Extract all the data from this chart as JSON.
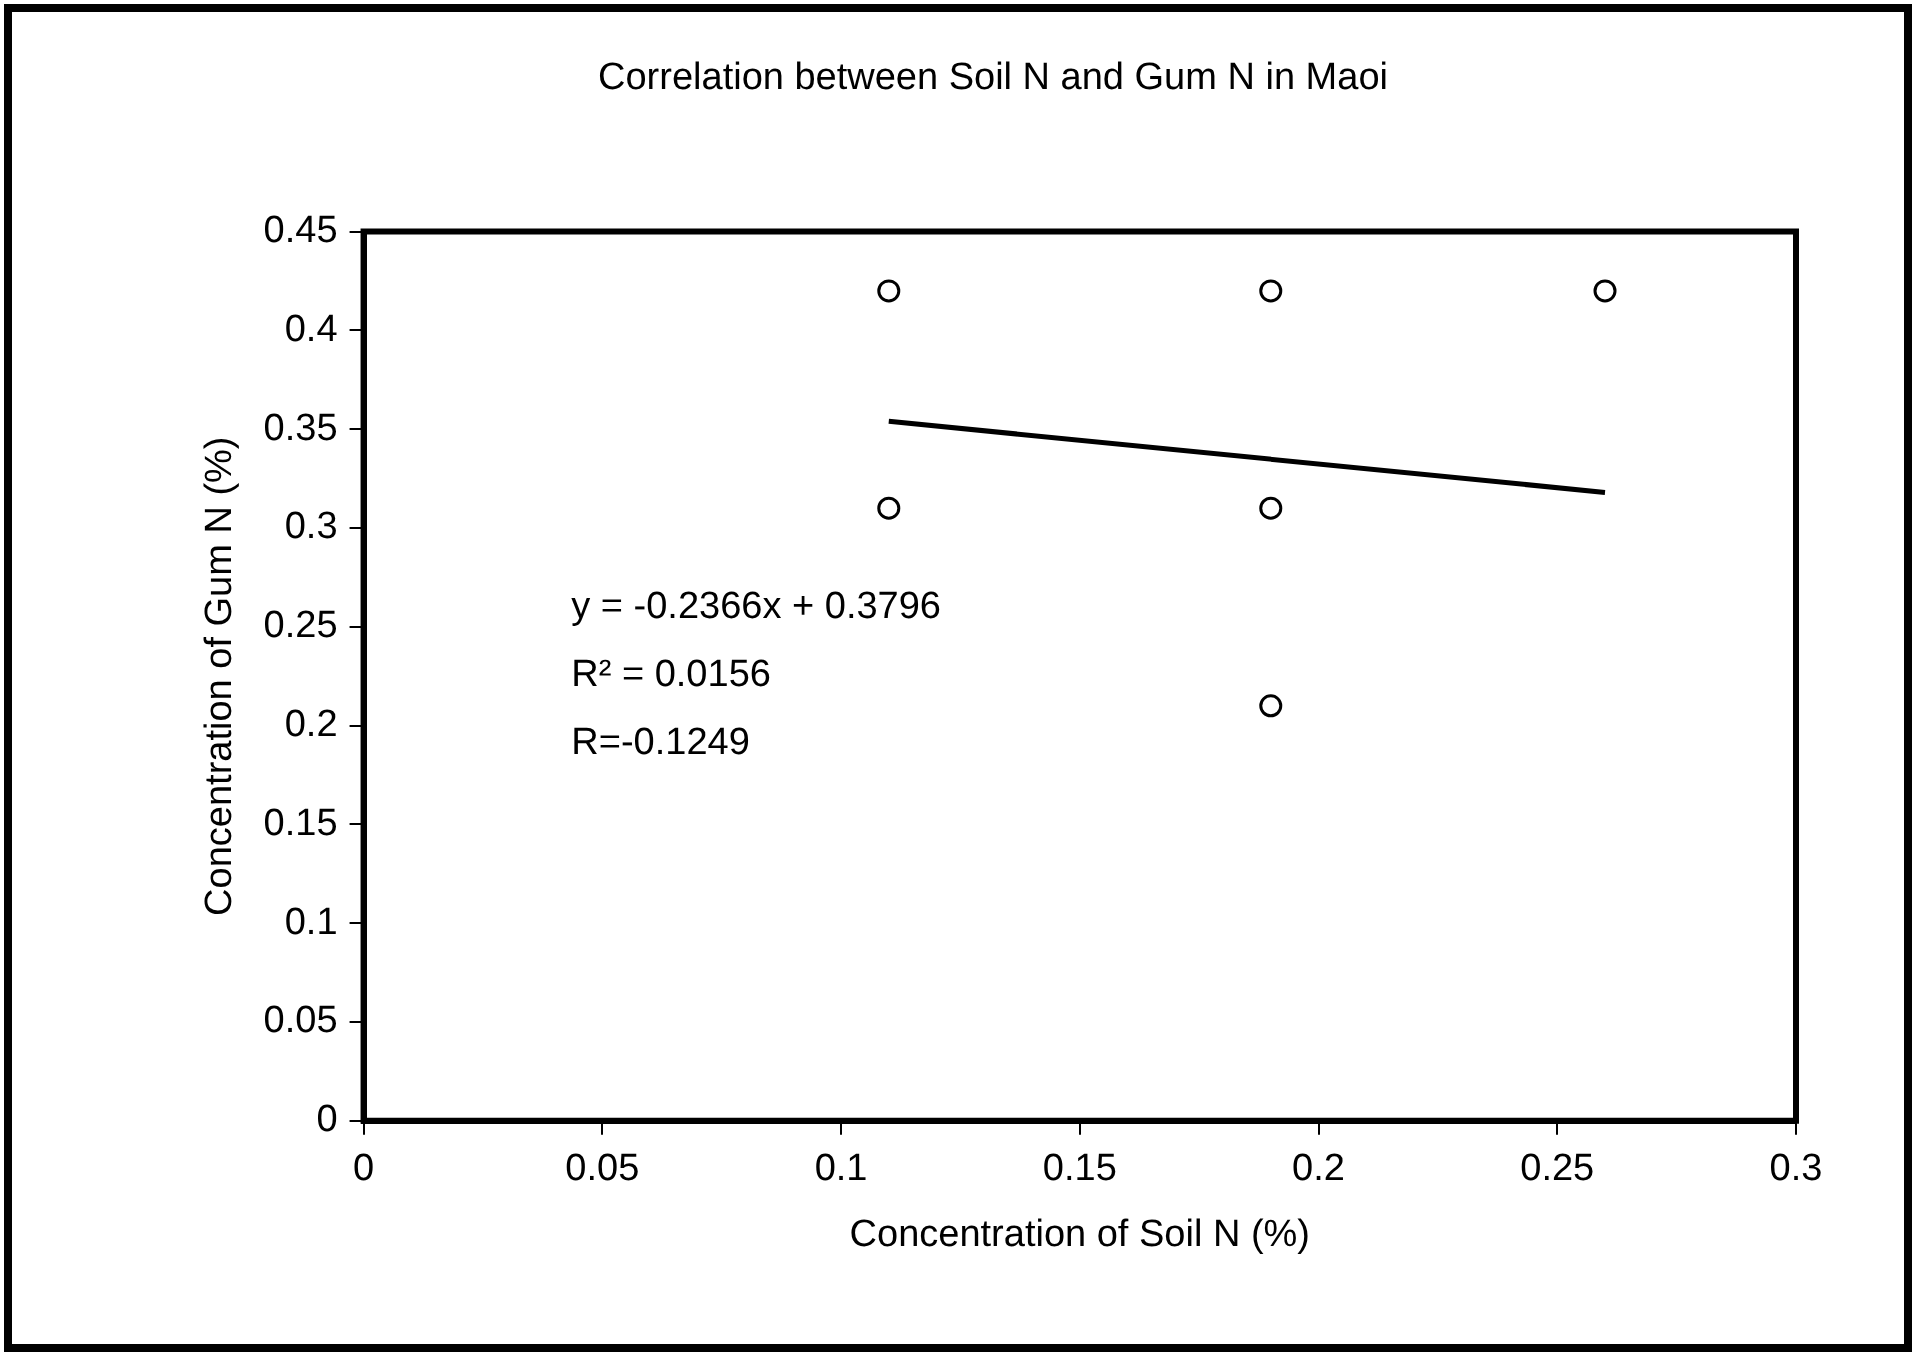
{
  "chart_data": {
    "type": "scatter",
    "title": "Correlation between Soil N and Gum N in Maoi",
    "xlabel": "Concentration of Soil N (%)",
    "ylabel": "Concentration of Gum N (%)",
    "series": [
      {
        "marker": "circle",
        "color": "#000000",
        "x": [
          0.11,
          0.11,
          0.19,
          0.19,
          0.19,
          0.26
        ],
        "values": [
          0.42,
          0.31,
          0.42,
          0.31,
          0.21,
          0.42
        ]
      },
      {
        "type": "line",
        "marker": "none",
        "color": "#000000",
        "x": [
          0.11,
          0.26
        ],
        "values": [
          0.354,
          0.318
        ]
      }
    ],
    "xlim": [
      0,
      0.3
    ],
    "xticks": [
      0,
      0.05,
      0.1,
      0.15,
      0.2,
      0.25,
      0.3
    ],
    "ylim": [
      0,
      0.45
    ],
    "yticks": [
      0,
      0.05,
      0.1,
      0.15,
      0.2,
      0.25,
      0.3,
      0.35,
      0.4,
      0.45
    ],
    "grid": false,
    "legend": false,
    "line_style": "solid",
    "annotations": [
      "y = -0.2366x + 0.3796",
      "R² = 0.0156",
      "R=-0.1249"
    ]
  }
}
